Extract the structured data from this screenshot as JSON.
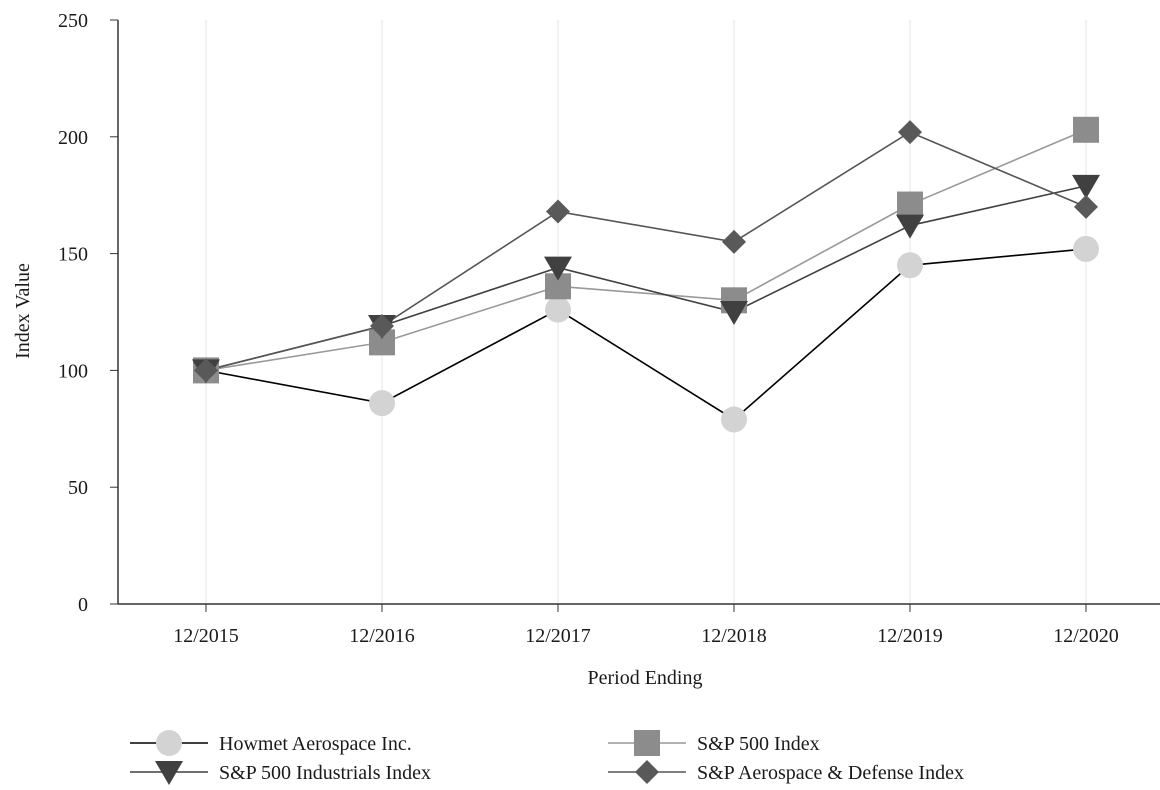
{
  "chart_data": {
    "type": "line",
    "title": "",
    "xlabel": "Period Ending",
    "ylabel": "Index Value",
    "categories": [
      "12/2015",
      "12/2016",
      "12/2017",
      "12/2018",
      "12/2019",
      "12/2020"
    ],
    "ylim": [
      0,
      250
    ],
    "yticks": [
      "0",
      "50",
      "100",
      "150",
      "200",
      "250"
    ],
    "grid": "vertical",
    "legend_position": "bottom",
    "series": [
      {
        "name": "Howmet Aerospace Inc.",
        "marker": "circle",
        "line_color": "#000000",
        "marker_color": "#d3d3d3",
        "values": [
          100,
          86,
          126,
          79,
          145,
          152
        ]
      },
      {
        "name": "S&P 500 Index",
        "marker": "square",
        "line_color": "#999999",
        "marker_color": "#8c8c8c",
        "values": [
          100,
          112,
          136,
          130,
          171,
          203
        ]
      },
      {
        "name": "S&P 500 Industrials Index",
        "marker": "triangle-down",
        "line_color": "#404040",
        "marker_color": "#404040",
        "values": [
          100,
          119,
          144,
          125,
          162,
          179
        ]
      },
      {
        "name": "S&P Aerospace & Defense Index",
        "marker": "diamond",
        "line_color": "#555555",
        "marker_color": "#595959",
        "values": [
          100,
          119,
          168,
          155,
          202,
          170
        ]
      }
    ]
  }
}
